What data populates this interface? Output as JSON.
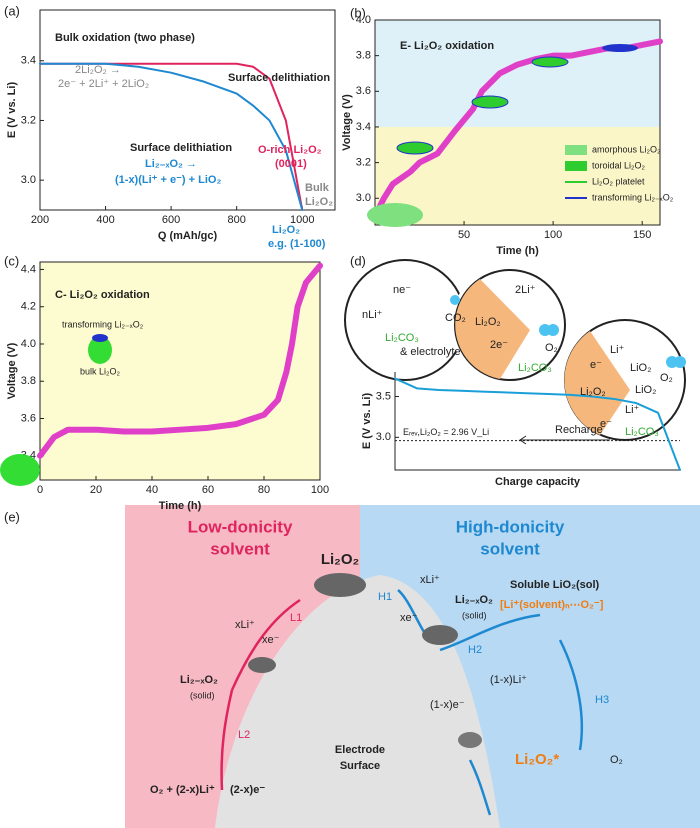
{
  "chart_data": [
    {
      "type": "line",
      "panel": "(a)",
      "xlabel": "Q  (mAh/gc)",
      "ylabel": "E  (V vs. Li)",
      "x": [
        200,
        400,
        500,
        600,
        700,
        800,
        850,
        900,
        950,
        975,
        1000
      ],
      "series": [
        {
          "color": "#e0245e",
          "values": [
            3.39,
            3.39,
            3.39,
            3.39,
            3.39,
            3.39,
            3.38,
            3.34,
            3.2,
            3.05,
            2.9
          ]
        },
        {
          "color": "#1e88d0",
          "values": [
            3.39,
            3.39,
            3.38,
            3.36,
            3.33,
            3.29,
            3.25,
            3.2,
            3.1,
            3.0,
            2.9
          ]
        }
      ],
      "xlim": [
        200,
        1100
      ],
      "ylim": [
        2.9,
        3.57
      ],
      "xticks": [
        200,
        400,
        600,
        800,
        1000
      ],
      "yticks": [
        {
          "value": 3,
          "label": "3.0"
        },
        3.2,
        3.4
      ],
      "annotations": [
        "Bulk oxidation (two phase)",
        "2Li₂O₂ →",
        "2e⁻ + 2Li⁺ + 2LiO₂",
        "Surface delithiation",
        "Surface delithiation",
        "Li₂₋ₓO₂ →",
        "(1-x)(Li⁺ + e⁻) + LiO₂",
        "O-rich Li₂O₂",
        "(0001)",
        "Bulk",
        "Li₂O₂",
        "Li₂O₂",
        "e.g. (1-100)"
      ]
    },
    {
      "type": "line",
      "panel": "(b)",
      "title": "E- Li₂O₂ oxidation",
      "xlabel": "Time (h)",
      "ylabel": "Voltage (V)",
      "x": [
        0,
        5,
        10,
        20,
        25,
        35,
        45,
        55,
        60,
        70,
        80,
        90,
        100,
        110,
        120,
        130,
        140,
        150,
        160
      ],
      "series": [
        {
          "color": "#e040c8",
          "values": [
            2.9,
            3.0,
            3.08,
            3.15,
            3.2,
            3.25,
            3.38,
            3.5,
            3.6,
            3.7,
            3.75,
            3.78,
            3.8,
            3.8,
            3.82,
            3.84,
            3.84,
            3.86,
            3.88
          ]
        }
      ],
      "xlim": [
        0,
        160
      ],
      "ylim": [
        2.85,
        4.0
      ],
      "xticks": [
        50,
        100,
        150
      ],
      "yticks": [
        {
          "value": 3,
          "label": "3.0"
        },
        3.2,
        3.4,
        3.6,
        3.8,
        {
          "value": 4,
          "label": "4.0"
        }
      ],
      "shaded_regions": [
        {
          "from": 3.4,
          "to": 4.0,
          "color": "#dff1f8"
        },
        {
          "from": 2.85,
          "to": 3.4,
          "color": "#fbf6c8"
        }
      ],
      "legend": [
        {
          "label": "amorphous Li₂O₂",
          "color": "#7fe07f"
        },
        {
          "label": "toroidal Li₂O₂",
          "color": "#2ecc2e"
        },
        {
          "label": "Li₂O₂ platelet",
          "color": "#2ecc2e"
        },
        {
          "label": "transforming Li₂₋ₓO₂",
          "color": "#2233cc"
        }
      ]
    },
    {
      "type": "line",
      "panel": "(c)",
      "title": "C- Li₂O₂ oxidation",
      "xlabel": "Time (h)",
      "ylabel": "Voltage (V)",
      "x": [
        0,
        5,
        10,
        20,
        30,
        40,
        50,
        60,
        70,
        80,
        85,
        88,
        90,
        92,
        95,
        100
      ],
      "series": [
        {
          "color": "#e040c8",
          "values": [
            3.4,
            3.5,
            3.54,
            3.54,
            3.53,
            3.53,
            3.54,
            3.55,
            3.57,
            3.62,
            3.7,
            3.85,
            4.0,
            4.2,
            4.33,
            4.42
          ]
        }
      ],
      "xlim": [
        0,
        100
      ],
      "ylim": [
        3.27,
        4.44
      ],
      "xticks": [
        0,
        20,
        40,
        60,
        80,
        100
      ],
      "yticks": [
        3.4,
        3.6,
        3.8,
        {
          "value": 4,
          "label": "4.0"
        },
        4.2,
        4.4
      ],
      "annotations": [
        "transforming Li₂₋ₓO₂",
        "bulk Li₂O₂"
      ]
    },
    {
      "type": "line",
      "panel": "(d)",
      "xlabel": "Charge capacity",
      "ylabel": "E (V vs. Li)",
      "series": [
        {
          "color": "#1a9fd8",
          "values": [
            3.72,
            3.6,
            3.58,
            3.57,
            3.56,
            3.55,
            3.54,
            3.53,
            3.52,
            3.5,
            3.47,
            3.42,
            3.3,
            2.6
          ]
        }
      ],
      "ylim": [
        2.6,
        3.8
      ],
      "yticks": [
        {
          "value": 3,
          "label": "3.0"
        },
        3.5
      ],
      "hline": {
        "value": 2.96,
        "label": "Eᵣₑᵥ,Li₂O₂ = 2.96 V_Li"
      },
      "annotations": [
        "Recharge",
        "ne⁻",
        "nLi⁺",
        "CO₂",
        "Li₂CO₃",
        "& electrolyte",
        "2Li⁺",
        "O₂",
        "Li₂O₂",
        "2e⁻",
        "Li₂CO₃",
        "e⁻",
        "Li⁺",
        "LiO₂",
        "LiO₂",
        "O₂",
        "Li₂O₂",
        "Li⁺",
        "e⁻",
        "Li₂CO₃"
      ]
    }
  ],
  "diagram": {
    "panel": "(e)",
    "left_title": [
      "Low-donicity",
      "solvent"
    ],
    "right_title": [
      "High-donicity",
      "solvent"
    ],
    "labels": [
      "Li₂O₂",
      "L1",
      "xLi⁺",
      "xe⁻",
      "Li₂₋ₓO₂",
      "(solid)",
      "L2",
      "O₂ + (2-x)Li⁺",
      "(2-x)e⁻",
      "Electrode",
      "Surface",
      "H1",
      "xLi⁺",
      "xe⁻",
      "Li₂₋ₓO₂",
      "(solid)",
      "H2",
      "(1-x)Li⁺",
      "(1-x)e⁻",
      "Soluble LiO₂(sol)",
      "[Li⁺(solvent)ₙ⋯O₂⁻]",
      "H3",
      "O₂",
      "Li₂O₂*"
    ]
  }
}
